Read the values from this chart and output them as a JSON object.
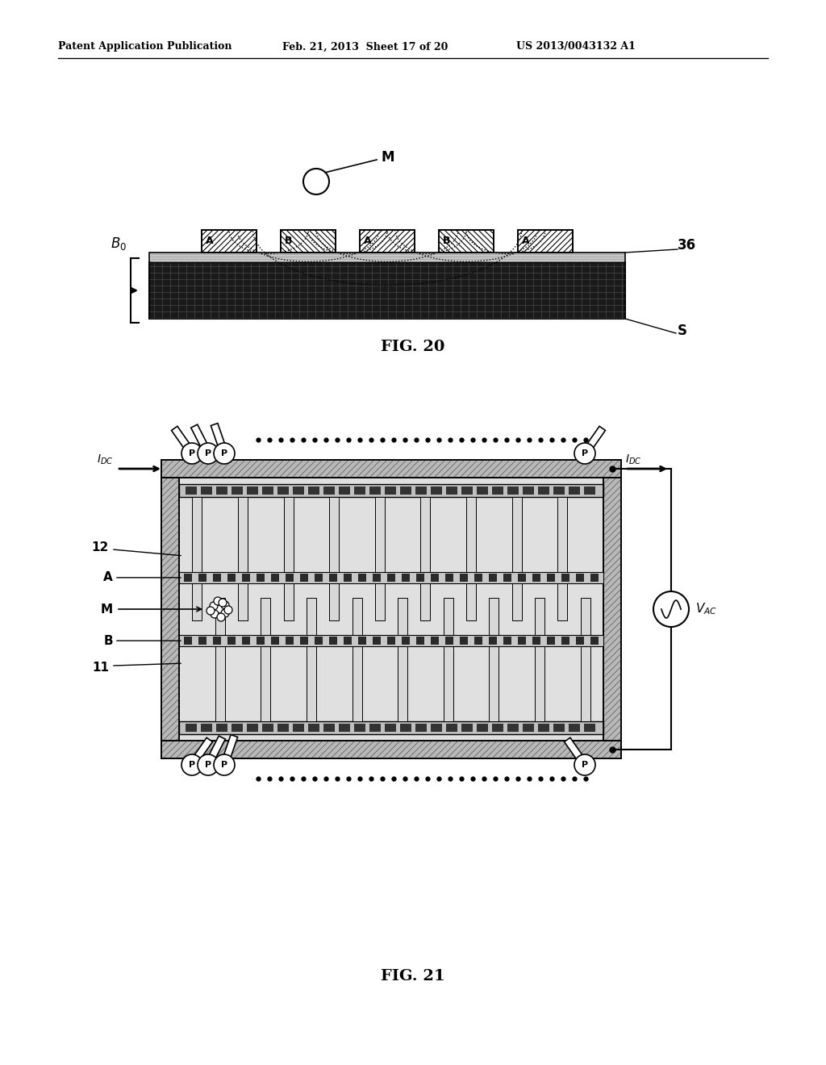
{
  "header_left": "Patent Application Publication",
  "header_mid": "Feb. 21, 2013  Sheet 17 of 20",
  "header_right": "US 2013/0043132 A1",
  "fig20_label": "FIG. 20",
  "fig21_label": "FIG. 21",
  "bg_color": "#ffffff"
}
